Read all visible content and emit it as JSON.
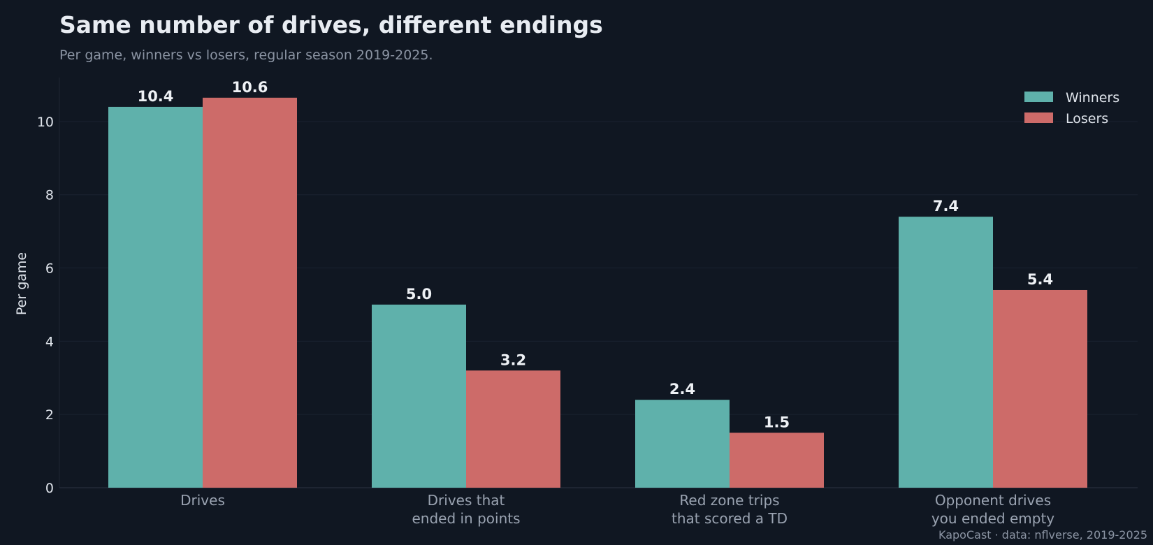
{
  "title": "Same number of drives, different endings",
  "subtitle": "Per game, winners vs losers, regular season 2019-2025.",
  "source": "KapoCast · data: nflverse, 2019-2025",
  "colors": {
    "background": "#101722",
    "winners": "#5fb1ab",
    "losers": "#cd6b69",
    "grid": "#1a2230"
  },
  "chart_data": {
    "type": "bar",
    "categories": [
      [
        "Drives"
      ],
      [
        "Drives that",
        "ended in points"
      ],
      [
        "Red zone trips",
        "that scored a TD"
      ],
      [
        "Opponent drives",
        "you ended empty"
      ]
    ],
    "series": [
      {
        "name": "Winners",
        "values": [
          10.4,
          5.0,
          2.4,
          7.4
        ],
        "labels": [
          "10.4",
          "5.0",
          "2.4",
          "7.4"
        ]
      },
      {
        "name": "Losers",
        "values": [
          10.65,
          3.2,
          1.5,
          5.4
        ],
        "labels": [
          "10.6",
          "3.2",
          "1.5",
          "5.4"
        ]
      }
    ],
    "ylabel": "Per game",
    "xlabel": "",
    "ylim": [
      0,
      11.2
    ],
    "yticks": [
      0,
      2,
      4,
      6,
      8,
      10
    ],
    "grid": "horizontal",
    "legend": "top-right"
  }
}
